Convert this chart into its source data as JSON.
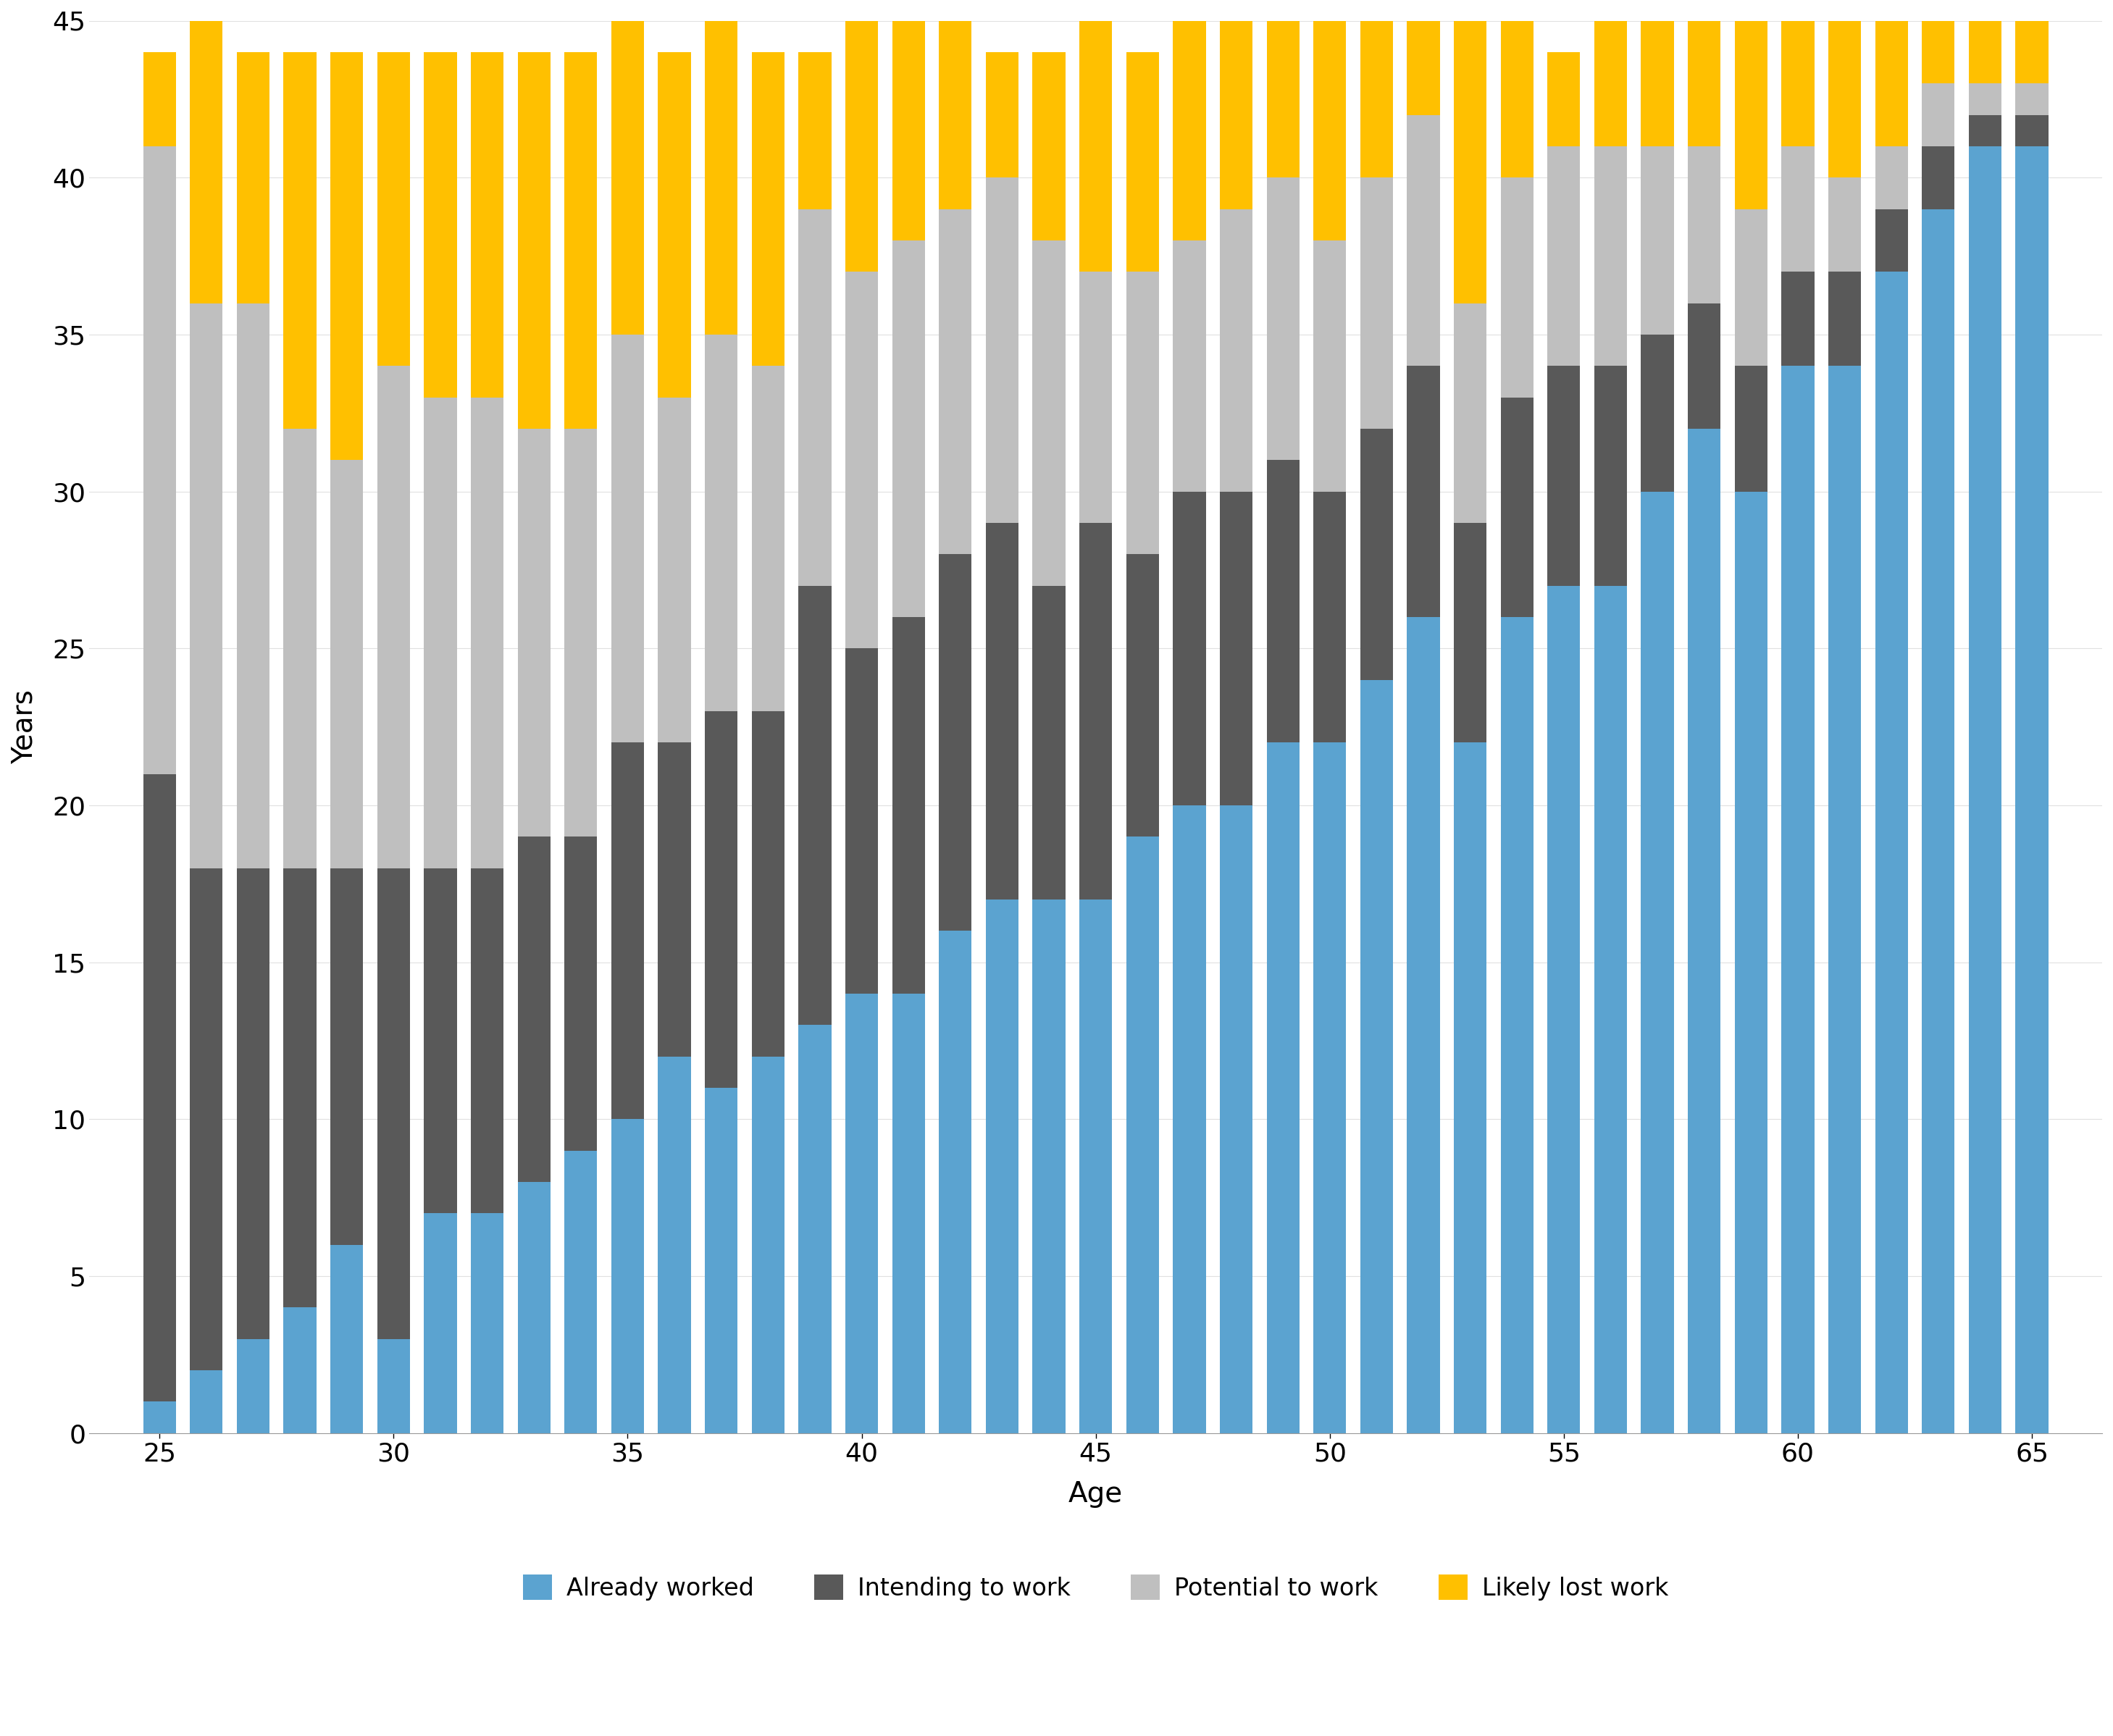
{
  "ages": [
    25,
    26,
    27,
    28,
    29,
    30,
    31,
    32,
    33,
    34,
    35,
    36,
    37,
    38,
    39,
    40,
    41,
    42,
    43,
    44,
    45,
    46,
    47,
    48,
    49,
    50,
    51,
    52,
    53,
    54,
    55,
    56,
    57,
    58,
    59,
    60,
    61,
    62,
    63,
    64,
    65
  ],
  "already_worked": [
    1,
    2,
    3,
    4,
    6,
    3,
    7,
    7,
    8,
    9,
    10,
    12,
    11,
    12,
    13,
    14,
    14,
    16,
    17,
    17,
    17,
    19,
    20,
    20,
    22,
    22,
    24,
    26,
    22,
    26,
    27,
    27,
    30,
    32,
    30,
    34,
    34,
    37,
    39,
    41,
    41
  ],
  "intending_to_work": [
    20,
    16,
    15,
    14,
    12,
    15,
    11,
    11,
    11,
    10,
    12,
    10,
    12,
    11,
    14,
    11,
    12,
    12,
    12,
    10,
    12,
    9,
    10,
    10,
    9,
    8,
    8,
    8,
    7,
    7,
    7,
    7,
    5,
    4,
    4,
    3,
    3,
    2,
    2,
    1,
    1
  ],
  "potential_to_work": [
    20,
    18,
    18,
    14,
    13,
    16,
    15,
    15,
    13,
    13,
    13,
    11,
    12,
    11,
    12,
    12,
    12,
    11,
    11,
    11,
    8,
    9,
    8,
    9,
    9,
    8,
    8,
    8,
    7,
    7,
    7,
    7,
    6,
    5,
    5,
    4,
    3,
    2,
    2,
    1,
    1
  ],
  "likely_lost": [
    3,
    12,
    8,
    12,
    13,
    10,
    11,
    11,
    12,
    12,
    10,
    11,
    10,
    10,
    5,
    8,
    8,
    6,
    4,
    6,
    8,
    7,
    7,
    6,
    5,
    7,
    7,
    3,
    9,
    5,
    3,
    4,
    4,
    4,
    6,
    4,
    5,
    4,
    2,
    2,
    2
  ],
  "already_worked_color": "#5BA3D0",
  "intending_to_work_color": "#595959",
  "potential_to_work_color": "#BFBFBF",
  "likely_lost_color": "#FFC000",
  "xlabel": "Age",
  "ylabel": "Years",
  "ylim": [
    0,
    45
  ],
  "yticks": [
    0,
    5,
    10,
    15,
    20,
    25,
    30,
    35,
    40,
    45
  ],
  "xticks": [
    25,
    30,
    35,
    40,
    45,
    50,
    55,
    60,
    65
  ],
  "legend_labels": [
    "Already worked",
    "Intending to work",
    "Potential to work",
    "Likely lost work"
  ],
  "bar_width": 0.7,
  "background_color": "#FFFFFF"
}
